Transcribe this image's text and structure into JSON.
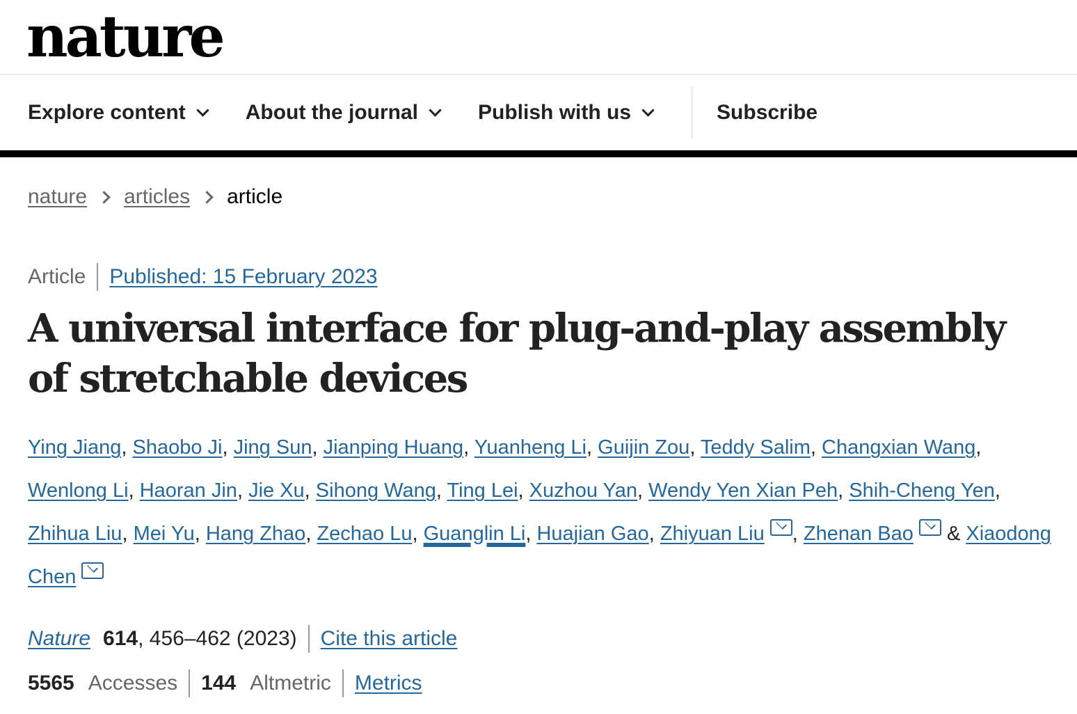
{
  "logo": "nature",
  "nav": {
    "items": [
      {
        "label": "Explore content",
        "dropdown": true
      },
      {
        "label": "About the journal",
        "dropdown": true
      },
      {
        "label": "Publish with us",
        "dropdown": true
      }
    ],
    "subscribe": "Subscribe"
  },
  "breadcrumb": [
    "nature",
    "articles",
    "article"
  ],
  "article": {
    "type": "Article",
    "published": "Published: 15 February 2023",
    "title": "A universal interface for plug-and-play assembly of stretchable devices",
    "authors": [
      {
        "name": "Ying Jiang"
      },
      {
        "name": "Shaobo Ji"
      },
      {
        "name": "Jing Sun"
      },
      {
        "name": "Jianping Huang"
      },
      {
        "name": "Yuanheng Li"
      },
      {
        "name": "Guijin Zou"
      },
      {
        "name": "Teddy Salim"
      },
      {
        "name": "Changxian Wang"
      },
      {
        "name": "Wenlong Li"
      },
      {
        "name": "Haoran Jin"
      },
      {
        "name": "Jie Xu"
      },
      {
        "name": "Sihong Wang"
      },
      {
        "name": "Ting Lei"
      },
      {
        "name": "Xuzhou Yan"
      },
      {
        "name": "Wendy Yen Xian Peh"
      },
      {
        "name": "Shih-Cheng Yen"
      },
      {
        "name": "Zhihua Liu"
      },
      {
        "name": "Mei Yu"
      },
      {
        "name": "Hang Zhao"
      },
      {
        "name": "Zechao Lu"
      },
      {
        "name": "Guanglin Li",
        "hovered": true
      },
      {
        "name": "Huajian Gao"
      },
      {
        "name": "Zhiyuan Liu",
        "corresponding": true
      },
      {
        "name": "Zhenan Bao",
        "corresponding": true
      },
      {
        "name": "Xiaodong Chen",
        "corresponding": true
      }
    ],
    "separator": ", ",
    "last_separator": " & ",
    "citation": {
      "journal": "Nature",
      "volume": "614",
      "pages": ", 456–462 (2023)",
      "cite_link": "Cite this article"
    },
    "stats": {
      "accesses": "5565",
      "accesses_label": "Accesses",
      "altmetric": "144",
      "altmetric_label": "Altmetric",
      "metrics_link": "Metrics"
    }
  },
  "colors": {
    "link": "#25679b",
    "text": "#222222",
    "muted": "#666666"
  }
}
